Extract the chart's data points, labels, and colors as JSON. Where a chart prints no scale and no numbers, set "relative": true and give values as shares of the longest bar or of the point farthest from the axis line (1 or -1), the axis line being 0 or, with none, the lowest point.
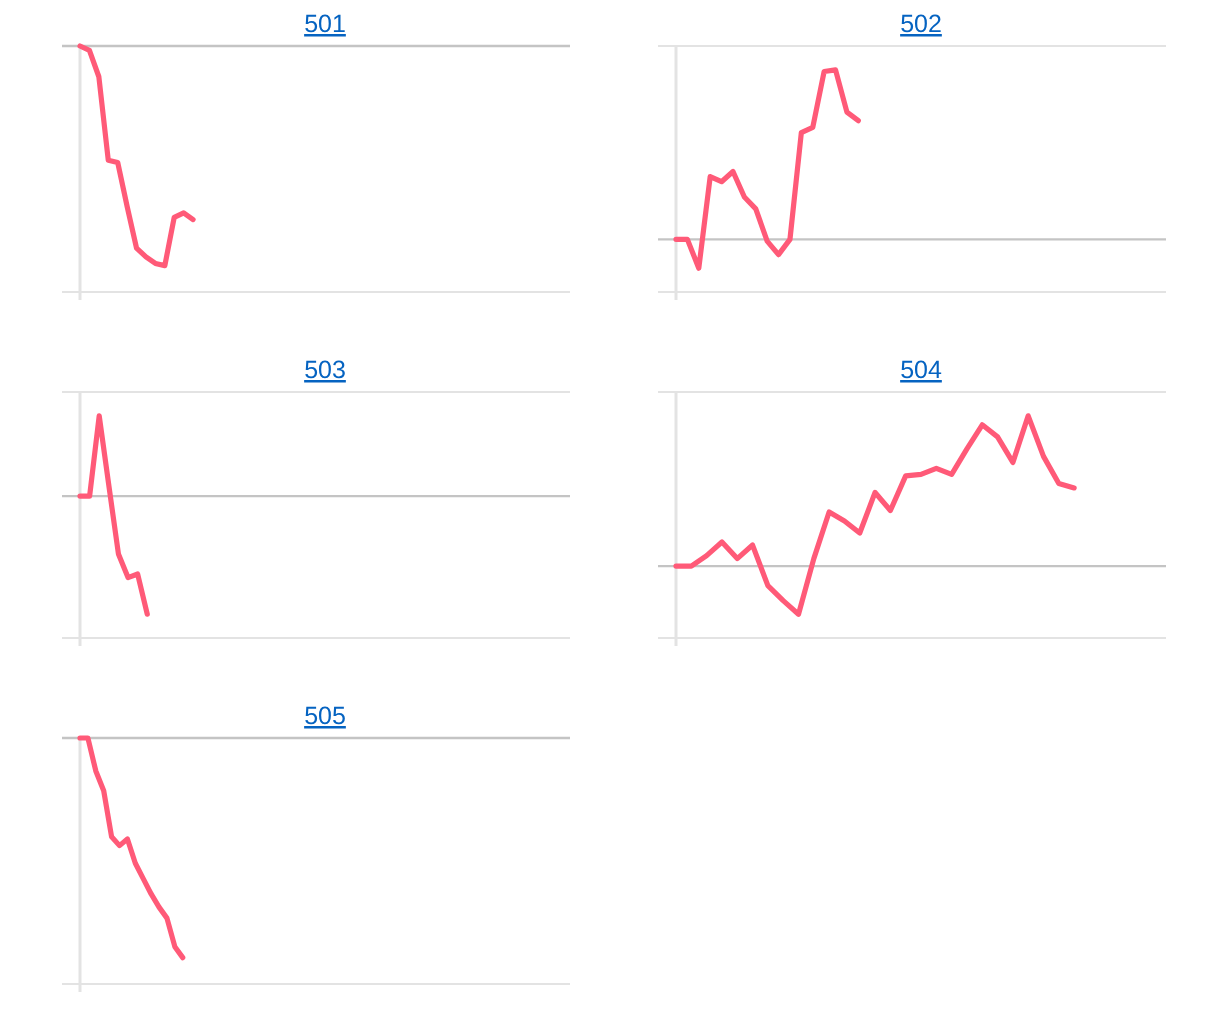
{
  "chart_data": [
    {
      "type": "line",
      "title": "501",
      "relative": true,
      "color": "#ff5a78",
      "categories": [
        null,
        null,
        null,
        null,
        null,
        null,
        null,
        null,
        null,
        null,
        null,
        null,
        null,
        null,
        null,
        null,
        null,
        null,
        null,
        null,
        null,
        null,
        null,
        null,
        null,
        null,
        null,
        null,
        null,
        null,
        null,
        null,
        null,
        null,
        null,
        null,
        null,
        null,
        null,
        null,
        null,
        null,
        null,
        null,
        null,
        null,
        null,
        null,
        null,
        null,
        null,
        null,
        null
      ],
      "values": [
        0,
        -0.02,
        -0.14,
        -0.52,
        -0.53,
        -0.73,
        -0.92,
        -0.96,
        -0.99,
        -1,
        -0.78,
        -0.76,
        -0.79,
        null,
        null,
        null,
        null,
        null,
        null,
        null,
        null,
        null,
        null,
        null,
        null,
        null,
        null,
        null,
        null,
        null,
        null,
        null,
        null,
        null,
        null,
        null,
        null,
        null,
        null,
        null,
        null,
        null,
        null,
        null,
        null,
        null,
        null,
        null,
        null,
        null,
        null,
        null,
        null
      ]
    },
    {
      "type": "line",
      "title": "502",
      "relative": true,
      "color": "#ff5a78",
      "categories": [
        null,
        null,
        null,
        null,
        null,
        null,
        null,
        null,
        null,
        null,
        null,
        null,
        null,
        null,
        null,
        null,
        null,
        null,
        null,
        null,
        null,
        null,
        null,
        null,
        null,
        null,
        null,
        null,
        null,
        null,
        null,
        null,
        null,
        null,
        null,
        null,
        null,
        null,
        null,
        null,
        null,
        null,
        null,
        null
      ],
      "values": [
        0,
        0,
        -0.17,
        0.37,
        0.34,
        0.4,
        0.25,
        0.18,
        -0.01,
        -0.09,
        0,
        0.63,
        0.66,
        0.99,
        1,
        0.75,
        0.7,
        null,
        null,
        null,
        null,
        null,
        null,
        null,
        null,
        null,
        null,
        null,
        null,
        null,
        null,
        null,
        null,
        null,
        null,
        null,
        null,
        null,
        null,
        null,
        null,
        null,
        null,
        null
      ]
    },
    {
      "type": "line",
      "title": "503",
      "relative": true,
      "color": "#ff5a78",
      "categories": [
        null,
        null,
        null,
        null,
        null,
        null,
        null,
        null,
        null,
        null,
        null,
        null,
        null,
        null,
        null,
        null,
        null,
        null,
        null,
        null,
        null,
        null,
        null,
        null,
        null,
        null,
        null,
        null,
        null,
        null,
        null,
        null,
        null,
        null,
        null,
        null,
        null,
        null,
        null,
        null,
        null,
        null,
        null,
        null,
        null,
        null,
        null,
        null,
        null,
        null,
        null,
        null
      ],
      "values": [
        0,
        0,
        0.68,
        0.09,
        -0.49,
        -0.69,
        -0.66,
        -1,
        null,
        null,
        null,
        null,
        null,
        null,
        null,
        null,
        null,
        null,
        null,
        null,
        null,
        null,
        null,
        null,
        null,
        null,
        null,
        null,
        null,
        null,
        null,
        null,
        null,
        null,
        null,
        null,
        null,
        null,
        null,
        null,
        null,
        null,
        null,
        null,
        null,
        null,
        null,
        null,
        null,
        null,
        null,
        null
      ]
    },
    {
      "type": "line",
      "title": "504",
      "relative": true,
      "color": "#ff5a78",
      "categories": [
        null,
        null,
        null,
        null,
        null,
        null,
        null,
        null,
        null,
        null,
        null,
        null,
        null,
        null,
        null,
        null,
        null,
        null,
        null,
        null,
        null,
        null,
        null,
        null,
        null,
        null,
        null,
        null,
        null,
        null,
        null,
        null,
        null
      ],
      "values": [
        0,
        0,
        0.07,
        0.16,
        0.05,
        0.14,
        -0.13,
        -0.23,
        -0.32,
        0.05,
        0.36,
        0.3,
        0.22,
        0.49,
        0.37,
        0.6,
        0.61,
        0.65,
        0.61,
        0.78,
        0.94,
        0.86,
        0.69,
        1,
        0.73,
        0.55,
        0.52,
        null,
        null,
        null,
        null,
        null,
        null
      ]
    },
    {
      "type": "line",
      "title": "505",
      "relative": true,
      "color": "#ff5a78",
      "categories": [
        null,
        null,
        null,
        null,
        null,
        null,
        null,
        null,
        null,
        null,
        null,
        null,
        null,
        null,
        null,
        null,
        null,
        null,
        null,
        null,
        null,
        null,
        null,
        null,
        null,
        null,
        null,
        null,
        null,
        null,
        null,
        null,
        null,
        null,
        null,
        null,
        null,
        null,
        null,
        null,
        null,
        null,
        null,
        null,
        null,
        null,
        null,
        null,
        null,
        null,
        null,
        null,
        null,
        null,
        null,
        null,
        null,
        null,
        null,
        null,
        null,
        null,
        null
      ],
      "values": [
        0,
        0,
        -0.15,
        -0.24,
        -0.45,
        -0.49,
        -0.46,
        -0.57,
        -0.64,
        -0.71,
        -0.77,
        -0.82,
        -0.95,
        -1,
        null,
        null,
        null,
        null,
        null,
        null,
        null,
        null,
        null,
        null,
        null,
        null,
        null,
        null,
        null,
        null,
        null,
        null,
        null,
        null,
        null,
        null,
        null,
        null,
        null,
        null,
        null,
        null,
        null,
        null,
        null,
        null,
        null,
        null,
        null,
        null,
        null,
        null,
        null,
        null,
        null,
        null,
        null,
        null,
        null,
        null,
        null,
        null,
        null
      ]
    }
  ]
}
